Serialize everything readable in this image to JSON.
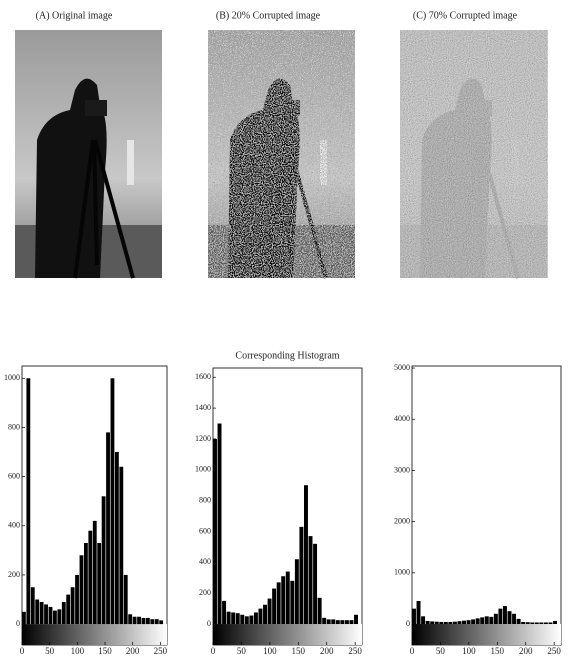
{
  "images": [
    {
      "caption": "(A) Original image"
    },
    {
      "caption": "(B) 20% Corrupted image"
    },
    {
      "caption": "(C) 70% Corrupted image"
    }
  ],
  "chart_data": [
    {
      "type": "histogram",
      "bins": [
        0,
        8,
        16,
        24,
        32,
        40,
        48,
        56,
        64,
        72,
        80,
        88,
        96,
        104,
        112,
        120,
        128,
        136,
        144,
        152,
        160,
        168,
        176,
        184,
        192,
        200,
        208,
        216,
        224,
        232,
        240,
        248,
        256
      ],
      "values": [
        50,
        1000,
        150,
        100,
        90,
        80,
        70,
        55,
        60,
        90,
        120,
        150,
        200,
        280,
        330,
        380,
        420,
        330,
        520,
        780,
        1000,
        700,
        640,
        200,
        40,
        30,
        30,
        25,
        25,
        20,
        20,
        15
      ],
      "color": "#000000",
      "xlim": [
        0,
        262
      ],
      "ylim": [
        -85,
        1050
      ],
      "xticks": [
        0,
        50,
        100,
        150,
        200,
        250
      ],
      "yticks": [
        0,
        200,
        400,
        600,
        800,
        1000
      ]
    },
    {
      "type": "histogram",
      "title": "Corresponding Histogram",
      "bins": [
        0,
        8,
        16,
        24,
        32,
        40,
        48,
        56,
        64,
        72,
        80,
        88,
        96,
        104,
        112,
        120,
        128,
        136,
        144,
        152,
        160,
        168,
        176,
        184,
        192,
        200,
        208,
        216,
        224,
        232,
        240,
        248,
        256
      ],
      "values": [
        1200,
        1300,
        150,
        80,
        75,
        70,
        60,
        50,
        55,
        75,
        100,
        125,
        165,
        230,
        270,
        310,
        340,
        280,
        420,
        630,
        900,
        570,
        520,
        170,
        40,
        30,
        30,
        25,
        25,
        25,
        25,
        60
      ],
      "color": "#000000",
      "xlim": [
        0,
        262
      ],
      "ylim": [
        -136,
        1660
      ],
      "xticks": [
        0,
        50,
        100,
        150,
        200,
        250
      ],
      "yticks": [
        0,
        200,
        400,
        600,
        800,
        1000,
        1200,
        1400,
        1600
      ]
    },
    {
      "type": "histogram",
      "bins": [
        0,
        8,
        16,
        24,
        32,
        40,
        48,
        56,
        64,
        72,
        80,
        88,
        96,
        104,
        112,
        120,
        128,
        136,
        144,
        152,
        160,
        168,
        176,
        184,
        192,
        200,
        208,
        216,
        224,
        232,
        240,
        248,
        256
      ],
      "values": [
        300,
        450,
        150,
        60,
        50,
        45,
        40,
        40,
        40,
        45,
        55,
        65,
        75,
        90,
        110,
        130,
        150,
        140,
        200,
        300,
        350,
        250,
        200,
        100,
        40,
        35,
        30,
        30,
        30,
        30,
        30,
        60
      ],
      "color": "#000000",
      "xlim": [
        0,
        262
      ],
      "ylim": [
        -410,
        5040
      ],
      "xticks": [
        0,
        50,
        100,
        150,
        200,
        250
      ],
      "yticks": [
        0,
        1000,
        2000,
        3000,
        4000,
        5000
      ]
    }
  ]
}
